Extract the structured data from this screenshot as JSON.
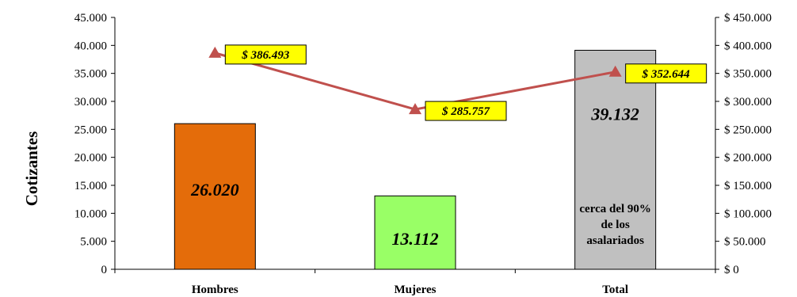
{
  "chart_data": {
    "type": "bar",
    "ylabel": "Cotizantes",
    "categories": [
      "Hombres",
      "Mujeres",
      "Total"
    ],
    "ylim": [
      0,
      45000
    ],
    "y2lim": [
      0,
      450000
    ],
    "yticks": [
      "0",
      "5.000",
      "10.000",
      "15.000",
      "20.000",
      "25.000",
      "30.000",
      "35.000",
      "40.000",
      "45.000"
    ],
    "y2ticks": [
      "$ 0",
      "$ 50.000",
      "$ 100.000",
      "$ 150.000",
      "$ 200.000",
      "$ 250.000",
      "$ 300.000",
      "$ 350.000",
      "$ 400.000",
      "$ 450.000"
    ],
    "grid": false,
    "bars": {
      "values": [
        26020,
        13112,
        39132
      ],
      "labels": [
        "26.020",
        "13.112",
        "39.132"
      ],
      "colors": [
        "#e46c0a",
        "#99ff66",
        "#c0c0c0"
      ]
    },
    "line": {
      "axis": "secondary",
      "values": [
        386493,
        285757,
        352644
      ],
      "labels": [
        "$ 386.493",
        "$ 285.757",
        "$ 352.644"
      ],
      "color": "#c0504d",
      "marker": "triangle",
      "label_background": "#ffff00"
    },
    "annotation": [
      "cerca del 90%",
      "de los",
      "asalariados"
    ]
  }
}
